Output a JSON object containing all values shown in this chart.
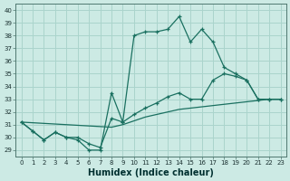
{
  "xlabel": "Humidex (Indice chaleur)",
  "background_color": "#cceae4",
  "grid_color": "#aad4cc",
  "line_color": "#1a7060",
  "xlim": [
    -0.5,
    23.5
  ],
  "ylim": [
    28.5,
    40.5
  ],
  "xticks": [
    0,
    1,
    2,
    3,
    4,
    5,
    6,
    7,
    8,
    9,
    10,
    11,
    12,
    13,
    14,
    15,
    16,
    17,
    18,
    19,
    20,
    21,
    22,
    23
  ],
  "yticks": [
    29,
    30,
    31,
    32,
    33,
    34,
    35,
    36,
    37,
    38,
    39,
    40
  ],
  "series1_x": [
    0,
    1,
    2,
    3,
    4,
    5,
    6,
    7,
    8,
    9,
    10,
    11,
    12,
    13,
    14,
    15,
    16,
    17,
    18,
    19,
    20,
    21,
    22,
    23
  ],
  "series1_y": [
    31.2,
    30.5,
    29.8,
    30.4,
    30.0,
    29.8,
    29.0,
    29.0,
    33.5,
    31.2,
    38.0,
    38.3,
    38.3,
    38.5,
    39.5,
    37.5,
    38.5,
    37.5,
    35.5,
    35.0,
    34.5,
    33.0,
    33.0,
    33.0
  ],
  "series2_x": [
    0,
    1,
    2,
    3,
    4,
    5,
    6,
    7,
    8,
    9,
    10,
    11,
    12,
    13,
    14,
    15,
    16,
    17,
    18,
    19,
    20,
    21,
    22,
    23
  ],
  "series2_y": [
    31.2,
    30.5,
    29.8,
    30.4,
    30.0,
    30.0,
    29.5,
    29.2,
    31.5,
    31.2,
    31.8,
    32.3,
    32.7,
    33.2,
    33.5,
    33.0,
    33.0,
    34.5,
    35.0,
    34.8,
    34.5,
    33.0,
    33.0,
    33.0
  ],
  "series3_x": [
    0,
    8,
    9,
    10,
    11,
    12,
    13,
    14,
    15,
    16,
    17,
    18,
    19,
    20,
    21,
    22,
    23
  ],
  "series3_y": [
    31.2,
    30.8,
    31.0,
    31.3,
    31.6,
    31.8,
    32.0,
    32.2,
    32.3,
    32.4,
    32.5,
    32.6,
    32.7,
    32.8,
    32.9,
    33.0,
    33.0
  ],
  "xlabel_fontsize": 7,
  "tick_fontsize": 5
}
